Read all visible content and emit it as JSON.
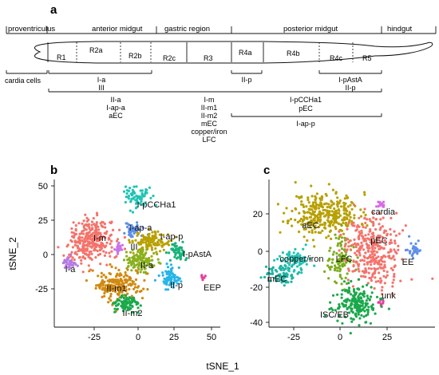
{
  "panel_a": {
    "label": "a",
    "regions": [
      "proventriculus",
      "anterior midgut",
      "gastric region",
      "posterior midgut",
      "hindgut"
    ],
    "segments": [
      "R1",
      "R2a",
      "R2b",
      "R2c",
      "R3",
      "R4a",
      "R4b",
      "R4c",
      "R5"
    ],
    "annot": {
      "cardia": "cardia cells",
      "anterior_1": [
        "I-a",
        "III"
      ],
      "posterior_1": [
        "II-p"
      ],
      "posterior_r5": [
        "I-pAstA",
        "II-p"
      ],
      "broad_1": [
        "II-a",
        "I-ap-a",
        "aEC"
      ],
      "gastric": [
        "I-m",
        "II-m1",
        "II-m2",
        "mEC",
        "copper/iron",
        "LFC"
      ],
      "posterior_2": [
        "I-pCCHa1",
        "pEC"
      ],
      "posterior_3": "I-ap-p"
    }
  },
  "panel_b": {
    "label": "b",
    "ylabel": "tSNE_2",
    "yticks": [
      "50",
      "25",
      "0",
      "-25"
    ],
    "xticks": [
      "-25",
      "0",
      "25",
      "50"
    ],
    "clusters": [
      {
        "name": "I-pCCHa1",
        "color": "#1fc4b4",
        "cx": 2,
        "cy": 42,
        "sx": 4,
        "sy": 4,
        "n": 70
      },
      {
        "name": "I-m",
        "color": "#f4736b",
        "cx": -27,
        "cy": 10,
        "sx": 7,
        "sy": 8,
        "n": 300
      },
      {
        "name": "I-ap-a",
        "color": "#5e8fe8",
        "cx": 0,
        "cy": 18,
        "sx": 3,
        "sy": 2.5,
        "n": 45
      },
      {
        "name": "I-ap-p",
        "color": "#b8a000",
        "cx": 12,
        "cy": 9,
        "sx": 6,
        "sy": 4,
        "n": 120
      },
      {
        "name": "III",
        "color": "#c873e8",
        "cx": -10,
        "cy": 4,
        "sx": 1.5,
        "sy": 2,
        "n": 20
      },
      {
        "name": "I-pAstA",
        "color": "#17b27a",
        "cx": 28,
        "cy": 2,
        "sx": 3,
        "sy": 3,
        "n": 55
      },
      {
        "name": "II-a",
        "color": "#8ab01e",
        "cx": 5,
        "cy": -5,
        "sx": 5,
        "sy": 4,
        "n": 130
      },
      {
        "name": "I-a",
        "color": "#b57ae6",
        "cx": -40,
        "cy": -6,
        "sx": 2.5,
        "sy": 2,
        "n": 35
      },
      {
        "name": "II-p",
        "color": "#27b4e8",
        "cx": 24,
        "cy": -17,
        "sx": 3.5,
        "sy": 4,
        "n": 70
      },
      {
        "name": "EEP",
        "color": "#e0439c",
        "cx": 45,
        "cy": -17,
        "sx": 1,
        "sy": 1,
        "n": 8
      },
      {
        "name": "II-m1",
        "color": "#d18a10",
        "cx": -10,
        "cy": -22,
        "sx": 7,
        "sy": 6,
        "n": 200
      },
      {
        "name": "II-m2",
        "color": "#1aa84b",
        "cx": -5,
        "cy": -36,
        "sx": 4.5,
        "sy": 3,
        "n": 90
      }
    ],
    "labels": [
      "I-pCCHa1",
      "I-ap-a",
      "I-ap-p",
      "I-m",
      "III",
      "I-pAstA",
      "II-a",
      "I-a",
      "II-p",
      "EEP",
      "II-m1",
      "II-m2"
    ]
  },
  "panel_c": {
    "label": "c",
    "yticks": [
      "20",
      "0",
      "-20",
      "-40"
    ],
    "xticks": [
      "-25",
      "0",
      "25"
    ],
    "clusters": [
      {
        "name": "aEC",
        "color": "#b8a000",
        "cx": -8,
        "cy": 20,
        "sx": 9,
        "sy": 6,
        "n": 330
      },
      {
        "name": "cardia",
        "color": "#d86be6",
        "cx": 22,
        "cy": 25,
        "sx": 1.2,
        "sy": 1.2,
        "n": 15
      },
      {
        "name": "copper/iron",
        "color": "#1fc4b4",
        "cx": -25,
        "cy": -5,
        "sx": 5,
        "sy": 3,
        "n": 70
      },
      {
        "name": "mEC",
        "color": "#1fb4a4",
        "cx": -32,
        "cy": -13,
        "sx": 4,
        "sy": 3,
        "n": 70
      },
      {
        "name": "LFC",
        "color": "#7dac1e",
        "cx": 0,
        "cy": -5,
        "sx": 3,
        "sy": 6,
        "n": 110
      },
      {
        "name": "pEC",
        "color": "#f4736b",
        "cx": 17,
        "cy": 0,
        "sx": 7,
        "sy": 10,
        "n": 330
      },
      {
        "name": "EE",
        "color": "#5e8fe8",
        "cx": 40,
        "cy": 0,
        "sx": 2,
        "sy": 2,
        "n": 30
      },
      {
        "name": "unk",
        "color": "#e0439c",
        "cx": 22,
        "cy": -29,
        "sx": 1,
        "sy": 1,
        "n": 10
      },
      {
        "name": "ISC/EB",
        "color": "#1aa84b",
        "cx": 8,
        "cy": -30,
        "sx": 6,
        "sy": 5,
        "n": 190
      }
    ],
    "labels": [
      "cardia",
      "aEC",
      "pEC",
      "copper/iron",
      "LFC",
      "EE",
      "mEC",
      "unk",
      "ISC/EB"
    ]
  },
  "xlabel": "tSNE_1"
}
